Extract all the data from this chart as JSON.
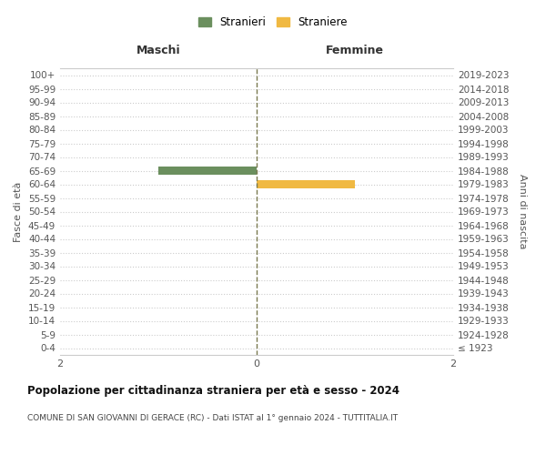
{
  "age_groups": [
    "100+",
    "95-99",
    "90-94",
    "85-89",
    "80-84",
    "75-79",
    "70-74",
    "65-69",
    "60-64",
    "55-59",
    "50-54",
    "45-49",
    "40-44",
    "35-39",
    "30-34",
    "25-29",
    "20-24",
    "15-19",
    "10-14",
    "5-9",
    "0-4"
  ],
  "birth_years": [
    "≤ 1923",
    "1924-1928",
    "1929-1933",
    "1934-1938",
    "1939-1943",
    "1944-1948",
    "1949-1953",
    "1954-1958",
    "1959-1963",
    "1964-1968",
    "1969-1973",
    "1974-1978",
    "1979-1983",
    "1984-1988",
    "1989-1993",
    "1994-1998",
    "1999-2003",
    "2004-2008",
    "2009-2013",
    "2014-2018",
    "2019-2023"
  ],
  "maschi": [
    0,
    0,
    0,
    0,
    0,
    0,
    0,
    1,
    0,
    0,
    0,
    0,
    0,
    0,
    0,
    0,
    0,
    0,
    0,
    0,
    0
  ],
  "femmine": [
    0,
    0,
    0,
    0,
    0,
    0,
    0,
    0,
    1,
    0,
    0,
    0,
    0,
    0,
    0,
    0,
    0,
    0,
    0,
    0,
    0
  ],
  "color_maschi": "#6b8f5e",
  "color_femmine": "#f0b942",
  "xlim": 2,
  "label_maschi": "Stranieri",
  "label_femmine": "Straniere",
  "title": "Popolazione per cittadinanza straniera per età e sesso - 2024",
  "subtitle": "COMUNE DI SAN GIOVANNI DI GERACE (RC) - Dati ISTAT al 1° gennaio 2024 - TUTTITALIA.IT",
  "ylabel_left": "Fasce di età",
  "ylabel_right": "Anni di nascita",
  "header_left": "Maschi",
  "header_right": "Femmine",
  "bg_color": "#ffffff",
  "grid_color": "#cccccc",
  "dashed_line_color": "#7a7a50"
}
